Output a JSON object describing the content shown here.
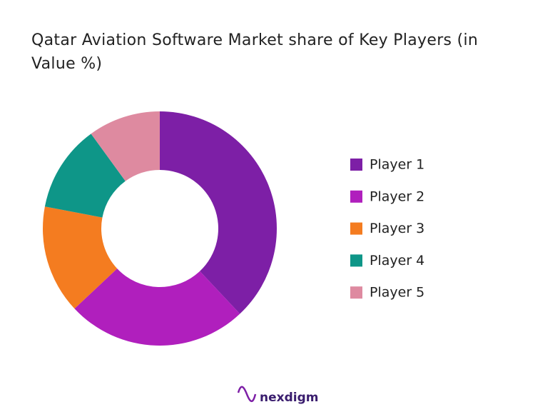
{
  "chart_data": {
    "type": "donut",
    "title": "Qatar Aviation Software Market share of Key Players (in Value %)",
    "categories": [
      "Player 1",
      "Player 2",
      "Player 3",
      "Player 4",
      "Player 5"
    ],
    "values": [
      38,
      25,
      15,
      12,
      10
    ],
    "colors": [
      "#7d1fa6",
      "#b01fbd",
      "#f47c20",
      "#0e9688",
      "#de8aa0"
    ]
  },
  "brand": "nexdigm"
}
